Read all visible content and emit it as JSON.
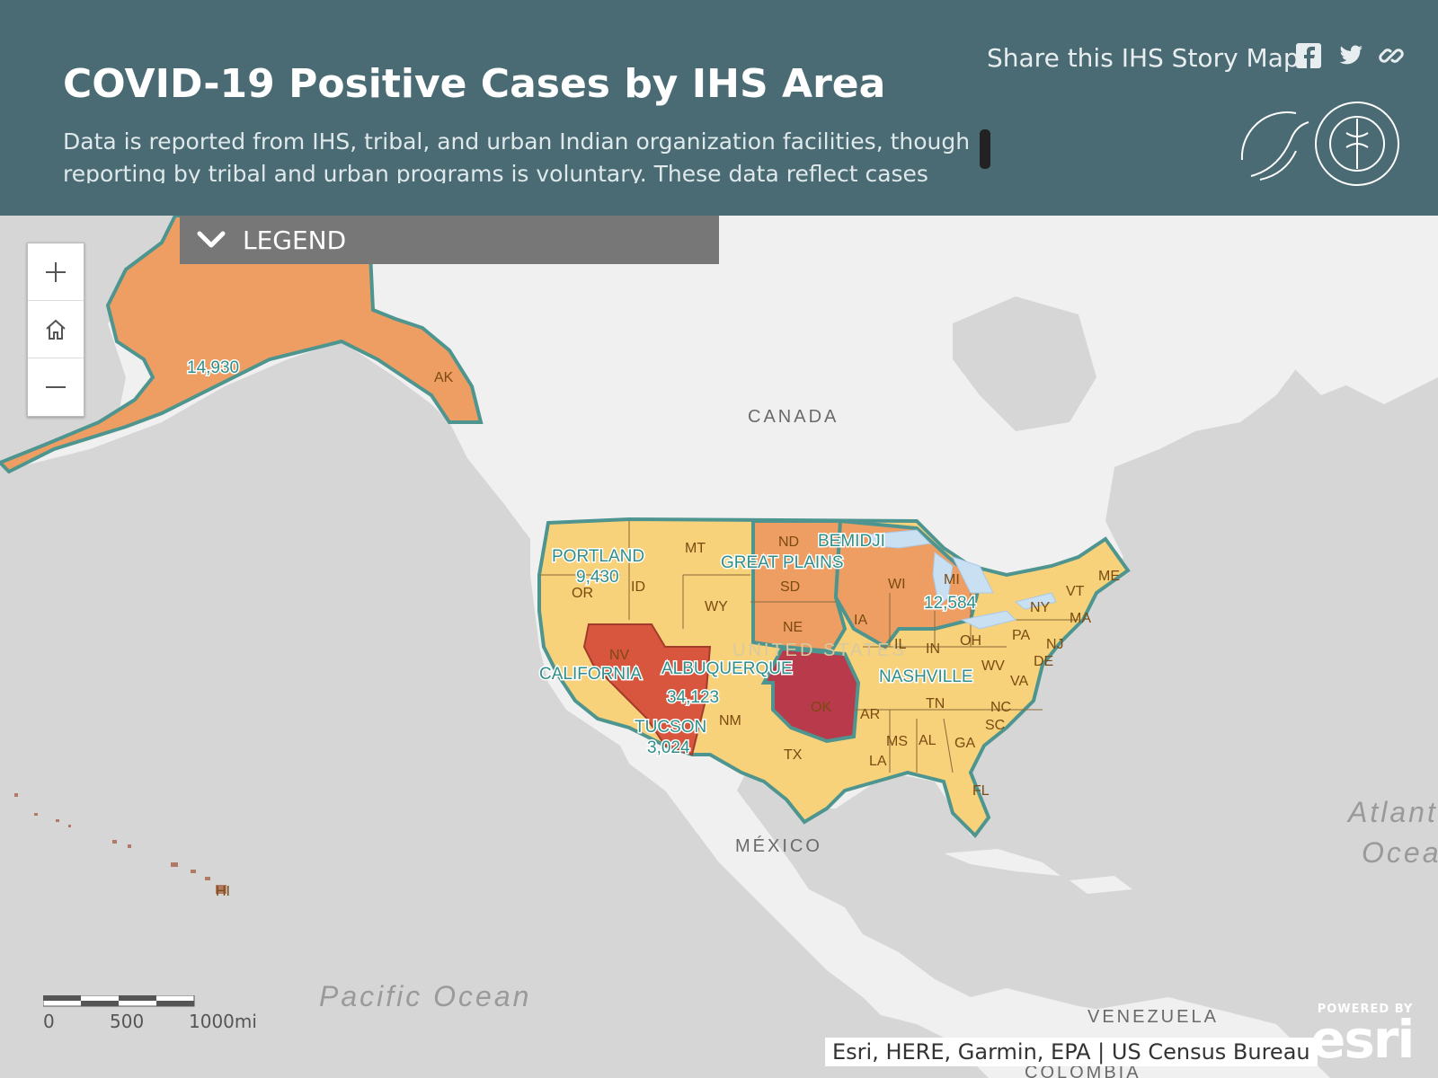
{
  "header": {
    "title": "COVID-19 Positive Cases by IHS Area",
    "description": "Data is reported from IHS, tribal, and urban Indian organization facilities, though reporting by tribal and urban programs is voluntary. These data reflect cases reported",
    "share_label": "Share this IHS Story Map",
    "share_icons": [
      "facebook-icon",
      "twitter-icon",
      "link-icon"
    ]
  },
  "legend": {
    "label": "LEGEND",
    "icon": "chevron-down-icon"
  },
  "zoom_controls": [
    "zoom-in-icon",
    "home-icon",
    "zoom-out-icon"
  ],
  "scale": {
    "labels": [
      "0",
      "500",
      "1000mi"
    ]
  },
  "attribution": "Esri, HERE, Garmin, EPA | US Census Bureau",
  "esri_logo": {
    "powered_by": "POWERED BY",
    "wordmark": "esri"
  },
  "basemap_labels": [
    "CANADA",
    "MÉXICO",
    "UNITED STATES",
    "Pacific Ocean",
    "Atlantic",
    "Ocean",
    "VENEZUELA",
    "COLOMBIA"
  ],
  "areas": [
    {
      "name": "PORTLAND",
      "cases": "9,430"
    },
    {
      "name": "GREAT PLAINS",
      "cases": ""
    },
    {
      "name": "BEMIDJI",
      "cases": "12,584"
    },
    {
      "name": "CALIFORNIA",
      "cases": ""
    },
    {
      "name": "ALBUQUERQUE",
      "cases": "34,123"
    },
    {
      "name": "TUCSON",
      "cases": "3,024"
    },
    {
      "name": "NASHVILLE",
      "cases": ""
    },
    {
      "name": "ALASKA",
      "cases": "14,930"
    }
  ],
  "state_labels": [
    "AK",
    "HI",
    "MT",
    "ND",
    "SD",
    "NE",
    "WY",
    "ID",
    "OR",
    "NV",
    "IA",
    "WI",
    "MI",
    "IL",
    "IN",
    "OH",
    "PA",
    "NY",
    "VT",
    "ME",
    "MA",
    "NJ",
    "DE",
    "WV",
    "VA",
    "NC",
    "SC",
    "GA",
    "FL",
    "AL",
    "MS",
    "TN",
    "AR",
    "LA",
    "TX",
    "OK",
    "NM"
  ],
  "colors": {
    "header_bg": "#4a6b73",
    "legend_bg": "#777777",
    "land": "#f0f0f0",
    "water": "#d6d6d6",
    "tier_low": "#f7d27a",
    "tier_mid": "#ee9e63",
    "tier_high": "#d8553e",
    "tier_top": "#b83a4b",
    "area_border": "#4e9590"
  }
}
